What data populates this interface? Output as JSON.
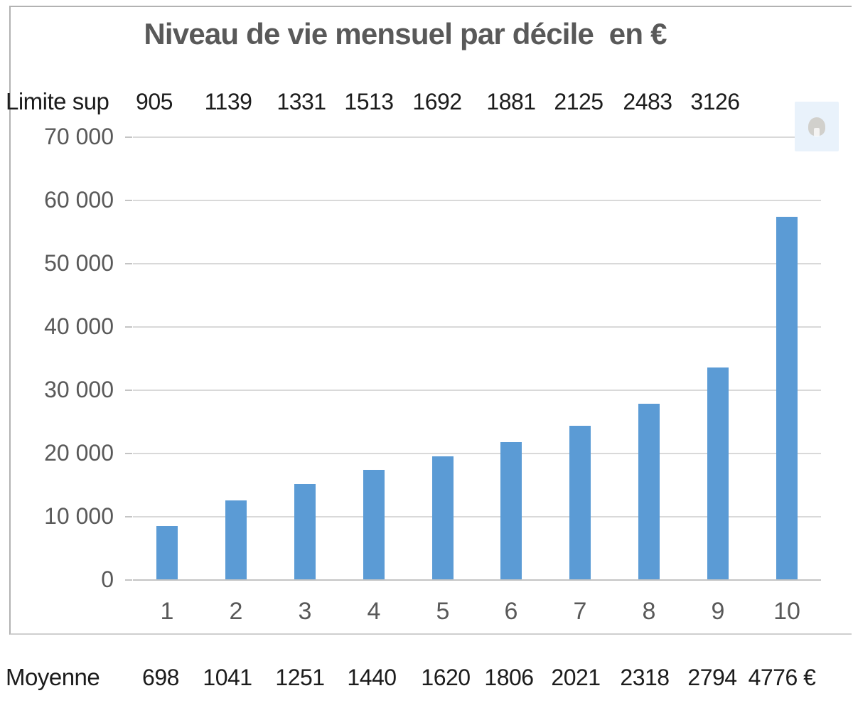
{
  "chart": {
    "title": "Niveau de vie mensuel par décile  en €"
  },
  "table": {
    "limite_sup": {
      "label": "Limite sup",
      "values": [
        "905",
        "1139",
        "1331",
        "1513",
        "1692",
        "1881",
        "2125",
        "2483",
        "3126"
      ]
    },
    "moyenne": {
      "label": "Moyenne",
      "values": [
        "698",
        "1041",
        "1251",
        "1440",
        "1620",
        "1806",
        "2021",
        "2318",
        "2794",
        "4776 €"
      ]
    }
  },
  "chart_data": {
    "type": "bar",
    "title": "Niveau de vie mensuel par décile  en €",
    "categories": [
      "1",
      "2",
      "3",
      "4",
      "5",
      "6",
      "7",
      "8",
      "9",
      "10"
    ],
    "values": [
      8400,
      12500,
      15000,
      17300,
      19400,
      21700,
      24300,
      27800,
      33500,
      57300
    ],
    "xlabel": "",
    "ylabel": "",
    "ylim": [
      0,
      70000
    ],
    "ytick_step": 10000,
    "ytick_labels": [
      "0",
      "10 000",
      "20 000",
      "30 000",
      "40 000",
      "50 000",
      "60 000",
      "70 000"
    ],
    "grid": "horizontal",
    "legend": "none",
    "bar_color": "#5b9bd5",
    "annotations": {
      "limite_sup_row": [
        905,
        1139,
        1331,
        1513,
        1692,
        1881,
        2125,
        2483,
        3126
      ],
      "moyenne_row": [
        698,
        1041,
        1251,
        1440,
        1620,
        1806,
        2021,
        2318,
        2794,
        4776
      ],
      "moyenne_unit": "€"
    }
  },
  "colors": {
    "bar": "#5b9bd5",
    "title_text": "#595959",
    "axis_text": "#595959",
    "row_text": "#1c1c1c",
    "gridline": "#d9d9d9",
    "styles_button_bg": "#e9f2fb"
  }
}
